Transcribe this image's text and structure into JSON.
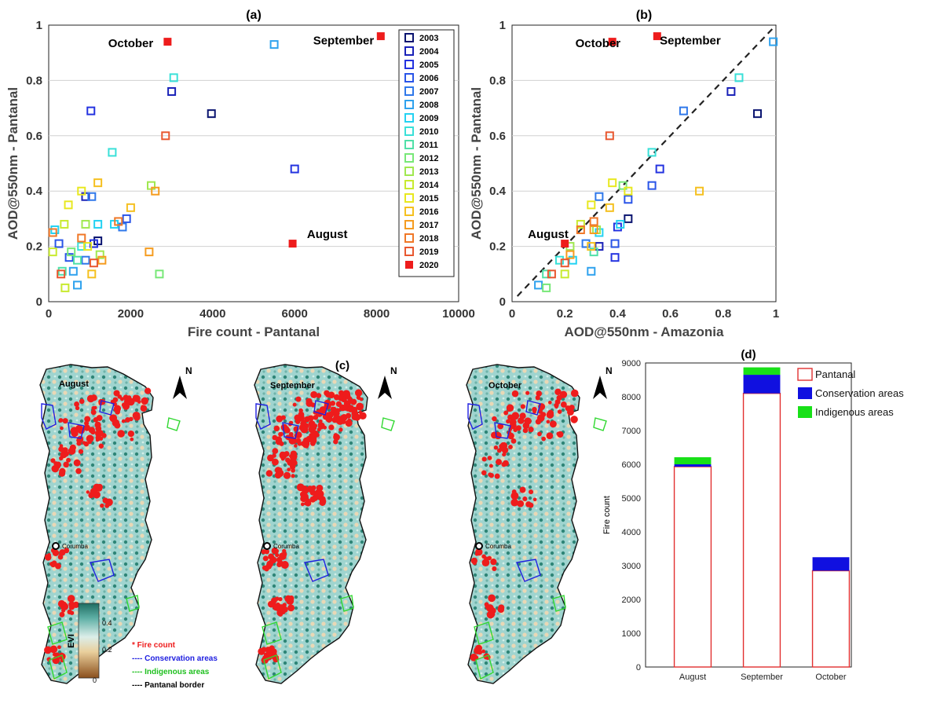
{
  "colors": {
    "marker_ramp": [
      "#0a1470",
      "#1a22b8",
      "#2433e0",
      "#2a55e8",
      "#2f78ea",
      "#2fa2ee",
      "#24d2f2",
      "#3ae0d8",
      "#50e0a8",
      "#78e878",
      "#a0e850",
      "#c8ea30",
      "#e8e820",
      "#f5c020",
      "#f59c20",
      "#f07828",
      "#e85830"
    ],
    "series_2020": "#ee1c1c",
    "pantanal_bar": "#e23030",
    "conservation_bar": "#1010e0",
    "indigenous_bar": "#18e018",
    "fire": "#ee1c1c",
    "conservation_outline": "#2020e0",
    "indigenous_outline": "#30d830",
    "evi_high": "#1f6d62",
    "evi_mid": "#dbeee9",
    "evi_low": "#8a4f1c"
  },
  "icons": {
    "north_arrow": "north-arrow-icon",
    "city_marker": "city-marker-icon"
  },
  "chart_data": [
    {
      "panel": "(a)",
      "type": "scatter",
      "title": "(a)",
      "xlabel": "Fire count - Pantanal",
      "ylabel": "AOD@550nm - Pantanal",
      "xlim": [
        0,
        10000
      ],
      "ylim": [
        0,
        1
      ],
      "xticks": [
        "0",
        "2000",
        "4000",
        "6000",
        "8000",
        "10000"
      ],
      "yticks": [
        "0",
        "0.2",
        "0.4",
        "0.6",
        "0.8",
        "1"
      ],
      "grid": "horizontal",
      "legend": "top-right",
      "series": [
        {
          "name": "2003",
          "points": [
            [
              3970,
              0.68
            ],
            [
              1200,
              0.22
            ]
          ]
        },
        {
          "name": "2004",
          "points": [
            [
              3000,
              0.76
            ],
            [
              900,
              0.38
            ]
          ]
        },
        {
          "name": "2005",
          "points": [
            [
              6000,
              0.48
            ],
            [
              1030,
              0.69
            ],
            [
              1100,
              0.21
            ]
          ]
        },
        {
          "name": "2006",
          "points": [
            [
              1900,
              0.3
            ],
            [
              250,
              0.21
            ],
            [
              500,
              0.16
            ]
          ]
        },
        {
          "name": "2007",
          "points": [
            [
              1800,
              0.27
            ],
            [
              1050,
              0.38
            ],
            [
              900,
              0.15
            ]
          ]
        },
        {
          "name": "2008",
          "points": [
            [
              5500,
              0.93
            ],
            [
              600,
              0.11
            ],
            [
              700,
              0.06
            ]
          ]
        },
        {
          "name": "2009",
          "points": [
            [
              1600,
              0.28
            ],
            [
              1200,
              0.28
            ],
            [
              150,
              0.26
            ]
          ]
        },
        {
          "name": "2010",
          "points": [
            [
              3050,
              0.81
            ],
            [
              1550,
              0.54
            ],
            [
              800,
              0.2
            ]
          ]
        },
        {
          "name": "2011",
          "points": [
            [
              330,
              0.11
            ],
            [
              700,
              0.15
            ]
          ]
        },
        {
          "name": "2012",
          "points": [
            [
              2700,
              0.1
            ],
            [
              550,
              0.18
            ]
          ]
        },
        {
          "name": "2013",
          "points": [
            [
              2500,
              0.42
            ],
            [
              1250,
              0.17
            ],
            [
              900,
              0.28
            ]
          ]
        },
        {
          "name": "2014",
          "points": [
            [
              380,
              0.28
            ],
            [
              100,
              0.18
            ],
            [
              400,
              0.05
            ]
          ]
        },
        {
          "name": "2015",
          "points": [
            [
              480,
              0.35
            ],
            [
              800,
              0.4
            ],
            [
              950,
              0.2
            ]
          ]
        },
        {
          "name": "2016",
          "points": [
            [
              2000,
              0.34
            ],
            [
              1050,
              0.1
            ],
            [
              1200,
              0.43
            ]
          ]
        },
        {
          "name": "2017",
          "points": [
            [
              2600,
              0.4
            ],
            [
              1300,
              0.15
            ],
            [
              2450,
              0.18
            ]
          ]
        },
        {
          "name": "2018",
          "points": [
            [
              1700,
              0.29
            ],
            [
              800,
              0.23
            ],
            [
              100,
              0.25
            ]
          ]
        },
        {
          "name": "2019",
          "points": [
            [
              2850,
              0.6
            ],
            [
              300,
              0.1
            ],
            [
              1100,
              0.14
            ]
          ]
        },
        {
          "name": "2020",
          "points": [
            [
              2900,
              0.94
            ],
            [
              8100,
              0.96
            ],
            [
              5950,
              0.21
            ]
          ]
        }
      ],
      "annotations": [
        {
          "text": "October",
          "at": [
            1450,
            0.92
          ]
        },
        {
          "text": "September",
          "at": [
            6450,
            0.93
          ]
        },
        {
          "text": "August",
          "at": [
            6300,
            0.23
          ]
        }
      ]
    },
    {
      "panel": "(b)",
      "type": "scatter",
      "title": "(b)",
      "xlabel": "AOD@550nm - Amazonia",
      "ylabel": "AOD@550nm - Pantanal",
      "xlim": [
        0,
        1
      ],
      "ylim": [
        0,
        1
      ],
      "xticks": [
        "0",
        "0.2",
        "0.4",
        "0.6",
        "0.8",
        "1"
      ],
      "yticks": [
        "0",
        "0.2",
        "0.4",
        "0.6",
        "0.8",
        "1"
      ],
      "grid": "horizontal",
      "reference_line": "dashed 1:1",
      "series": [
        {
          "name": "2003",
          "points": [
            [
              0.93,
              0.68
            ],
            [
              0.44,
              0.3
            ]
          ]
        },
        {
          "name": "2004",
          "points": [
            [
              0.83,
              0.76
            ],
            [
              0.33,
              0.2
            ]
          ]
        },
        {
          "name": "2005",
          "points": [
            [
              0.56,
              0.48
            ],
            [
              0.39,
              0.16
            ],
            [
              0.4,
              0.27
            ]
          ]
        },
        {
          "name": "2006",
          "points": [
            [
              0.53,
              0.42
            ],
            [
              0.39,
              0.21
            ],
            [
              0.44,
              0.37
            ]
          ]
        },
        {
          "name": "2007",
          "points": [
            [
              0.65,
              0.69
            ],
            [
              0.33,
              0.38
            ],
            [
              0.28,
              0.21
            ]
          ]
        },
        {
          "name": "2008",
          "points": [
            [
              0.99,
              0.94
            ],
            [
              0.3,
              0.11
            ],
            [
              0.1,
              0.06
            ]
          ]
        },
        {
          "name": "2009",
          "points": [
            [
              0.41,
              0.28
            ],
            [
              0.33,
              0.25
            ],
            [
              0.23,
              0.15
            ]
          ]
        },
        {
          "name": "2010",
          "points": [
            [
              0.86,
              0.81
            ],
            [
              0.53,
              0.54
            ],
            [
              0.18,
              0.15
            ]
          ]
        },
        {
          "name": "2011",
          "points": [
            [
              0.13,
              0.1
            ],
            [
              0.31,
              0.18
            ]
          ]
        },
        {
          "name": "2012",
          "points": [
            [
              0.42,
              0.42
            ],
            [
              0.13,
              0.05
            ]
          ]
        },
        {
          "name": "2013",
          "points": [
            [
              0.22,
              0.2
            ],
            [
              0.32,
              0.26
            ]
          ]
        },
        {
          "name": "2014",
          "points": [
            [
              0.2,
              0.1
            ],
            [
              0.26,
              0.28
            ]
          ]
        },
        {
          "name": "2015",
          "points": [
            [
              0.3,
              0.35
            ],
            [
              0.38,
              0.43
            ],
            [
              0.44,
              0.4
            ]
          ]
        },
        {
          "name": "2016",
          "points": [
            [
              0.71,
              0.4
            ],
            [
              0.37,
              0.34
            ],
            [
              0.3,
              0.2
            ]
          ]
        },
        {
          "name": "2017",
          "points": [
            [
              0.31,
              0.26
            ],
            [
              0.22,
              0.17
            ]
          ]
        },
        {
          "name": "2018",
          "points": [
            [
              0.26,
              0.26
            ],
            [
              0.31,
              0.29
            ]
          ]
        },
        {
          "name": "2019",
          "points": [
            [
              0.37,
              0.6
            ],
            [
              0.15,
              0.1
            ],
            [
              0.2,
              0.14
            ]
          ]
        },
        {
          "name": "2020",
          "points": [
            [
              0.38,
              0.94
            ],
            [
              0.55,
              0.96
            ],
            [
              0.2,
              0.21
            ]
          ]
        }
      ],
      "annotations": [
        {
          "text": "October",
          "at": [
            0.24,
            0.92
          ]
        },
        {
          "text": "September",
          "at": [
            0.56,
            0.93
          ]
        },
        {
          "text": "August",
          "at": [
            0.06,
            0.23
          ]
        }
      ]
    },
    {
      "panel": "(d)",
      "type": "bar",
      "title": "(d)",
      "ylabel": "Fire count",
      "ylim": [
        0,
        9000
      ],
      "yticks": [
        "0",
        "1000",
        "2000",
        "3000",
        "4000",
        "5000",
        "6000",
        "7000",
        "8000",
        "9000"
      ],
      "categories": [
        "August",
        "September",
        "October"
      ],
      "stacked": true,
      "legend": "top-right",
      "series": [
        {
          "name": "Pantanal",
          "values": [
            5930,
            8100,
            2850
          ]
        },
        {
          "name": "Conservation areas",
          "values": [
            70,
            550,
            400
          ]
        },
        {
          "name": "Indigenous areas",
          "values": [
            210,
            220,
            0
          ]
        }
      ]
    }
  ],
  "maps": {
    "panel_label": "(c)",
    "months": [
      "August",
      "September",
      "October"
    ],
    "city": "Corumba",
    "north_label": "N",
    "legend": {
      "fire": "* Fire count",
      "conservation": "---- Conservation areas",
      "indigenous": "---- Indigenous areas",
      "border": "---- Pantanal border"
    },
    "colorbar": {
      "label": "EVI",
      "ticks": [
        "0.4",
        "0.2",
        "0"
      ],
      "range": [
        0,
        0.5
      ]
    }
  }
}
